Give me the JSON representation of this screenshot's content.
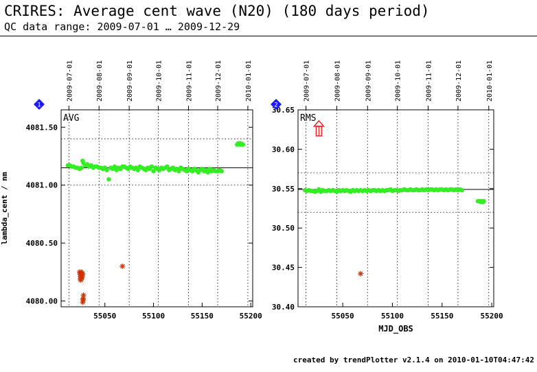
{
  "header": {
    "title": "CRIRES: Average cent wave (N20) (180 days period)",
    "subtitle": "QC data range: 2009-07-01 … 2009-12-29"
  },
  "footer": {
    "text": "created by trendPlotter v2.1.4 on 2010-01-10T04:47:42"
  },
  "colors": {
    "points": "#33ee22",
    "outliers": "#cc3300",
    "outlier_arrow": "#ff2020",
    "panel_marker": "#1a1aff",
    "reference": "#000000"
  },
  "chart_data": [
    {
      "type": "scatter",
      "panel_number": "1",
      "label": "AVG",
      "ylabel": "lambda_cent / nm",
      "xlabel": "",
      "xlim": [
        55005,
        55202
      ],
      "ylim": [
        4079.95,
        4081.65
      ],
      "yticks": [
        "4080.00",
        "4080.50",
        "4081.00",
        "4081.50"
      ],
      "ytick_values": [
        4080.0,
        4080.5,
        4081.0,
        4081.5
      ],
      "xticks": [
        "55050",
        "55100",
        "55150",
        "55200"
      ],
      "xtick_values": [
        55050,
        55100,
        55150,
        55200
      ],
      "top_dates": [
        "2009-07-01",
        "2009-08-01",
        "2009-09-01",
        "2009-10-01",
        "2009-11-01",
        "2009-12-01",
        "2010-01-01"
      ],
      "top_date_mjd": [
        55013,
        55044,
        55075,
        55105,
        55136,
        55166,
        55197
      ],
      "reference_line": 4081.15,
      "limit_lines": [
        4081.4,
        4081.0
      ],
      "series": [
        {
          "x": [
            55012,
            55014,
            55016,
            55018,
            55020,
            55022,
            55024,
            55026,
            55027,
            55028,
            55030,
            55032,
            55034,
            55036,
            55038,
            55040,
            55042,
            55044,
            55046,
            55048,
            55050,
            55052,
            55054,
            55056,
            55058,
            55060,
            55062,
            55064,
            55066,
            55068,
            55070,
            55072,
            55074,
            55076,
            55078,
            55080,
            55082,
            55084,
            55086,
            55088,
            55090,
            55092,
            55094,
            55096,
            55098,
            55100,
            55102,
            55104,
            55106,
            55108,
            55110,
            55112,
            55114,
            55116,
            55118,
            55120,
            55122,
            55124,
            55126,
            55128,
            55130,
            55132,
            55134,
            55136,
            55138,
            55140,
            55142,
            55144,
            55146,
            55148,
            55150,
            55152,
            55154,
            55156,
            55158,
            55160,
            55162,
            55164,
            55166,
            55168,
            55170,
            55186,
            55187,
            55188,
            55189,
            55190,
            55191,
            55192
          ],
          "y": [
            4081.17,
            4081.17,
            4081.16,
            4081.16,
            4081.15,
            4081.15,
            4081.14,
            4081.15,
            4081.21,
            4081.19,
            4081.17,
            4081.18,
            4081.16,
            4081.17,
            4081.15,
            4081.16,
            4081.16,
            4081.15,
            4081.15,
            4081.14,
            4081.15,
            4081.13,
            4081.05,
            4081.15,
            4081.14,
            4081.16,
            4081.13,
            4081.15,
            4081.14,
            4081.16,
            4081.16,
            4081.15,
            4081.14,
            4081.16,
            4081.15,
            4081.14,
            4081.15,
            4081.13,
            4081.16,
            4081.15,
            4081.14,
            4081.13,
            4081.15,
            4081.14,
            4081.16,
            4081.12,
            4081.15,
            4081.14,
            4081.13,
            4081.15,
            4081.14,
            4081.15,
            4081.16,
            4081.13,
            4081.14,
            4081.15,
            4081.13,
            4081.14,
            4081.12,
            4081.15,
            4081.14,
            4081.13,
            4081.12,
            4081.14,
            4081.13,
            4081.12,
            4081.14,
            4081.13,
            4081.11,
            4081.13,
            4081.14,
            4081.12,
            4081.13,
            4081.11,
            4081.14,
            4081.12,
            4081.13,
            4081.12,
            4081.12,
            4081.13,
            4081.12,
            4081.35,
            4081.36,
            4081.36,
            4081.35,
            4081.36,
            4081.35,
            4081.35
          ]
        },
        {
          "x": [
            55024,
            55024.5,
            55025,
            55025.5,
            55026,
            55026.5,
            55027,
            55024.8,
            55025.6,
            55026.2,
            55025.3,
            55026.8,
            55027.5,
            55028,
            55027.2,
            55027.8,
            55068
          ],
          "y": [
            4080.25,
            4080.23,
            4080.21,
            4080.24,
            4080.22,
            4080.2,
            4080.23,
            4080.19,
            4080.25,
            4080.21,
            4080.18,
            4080.24,
            4080.02,
            4080.05,
            4079.99,
            4080.01,
            4080.3
          ]
        }
      ]
    },
    {
      "type": "scatter",
      "panel_number": "2",
      "label": "RMS",
      "ylabel": "",
      "xlabel": "MJD_OBS",
      "xlim": [
        55005,
        55202
      ],
      "ylim": [
        30.4,
        30.65
      ],
      "yticks": [
        "30.40",
        "30.45",
        "30.50",
        "30.55",
        "30.60",
        "30.65"
      ],
      "ytick_values": [
        30.4,
        30.45,
        30.5,
        30.55,
        30.6,
        30.65
      ],
      "xticks": [
        "55050",
        "55100",
        "55150",
        "55200"
      ],
      "xtick_values": [
        55050,
        55100,
        55150,
        55200
      ],
      "top_dates": [
        "2009-07-01",
        "2009-08-01",
        "2009-09-01",
        "2009-10-01",
        "2009-11-01",
        "2009-12-01",
        "2010-01-01"
      ],
      "top_date_mjd": [
        55013,
        55044,
        55075,
        55105,
        55136,
        55166,
        55197
      ],
      "reference_line": 30.549,
      "limit_lines": [
        30.57,
        30.52
      ],
      "series": [
        {
          "x": [
            55012,
            55014,
            55016,
            55018,
            55020,
            55022,
            55024,
            55026,
            55028,
            55030,
            55032,
            55034,
            55036,
            55038,
            55040,
            55042,
            55044,
            55046,
            55048,
            55050,
            55052,
            55054,
            55056,
            55058,
            55060,
            55062,
            55064,
            55066,
            55068,
            55070,
            55072,
            55074,
            55076,
            55078,
            55080,
            55082,
            55084,
            55086,
            55088,
            55090,
            55092,
            55094,
            55096,
            55098,
            55100,
            55102,
            55104,
            55106,
            55108,
            55110,
            55112,
            55114,
            55116,
            55118,
            55120,
            55122,
            55124,
            55126,
            55128,
            55130,
            55132,
            55134,
            55136,
            55138,
            55140,
            55142,
            55144,
            55146,
            55148,
            55150,
            55152,
            55154,
            55156,
            55158,
            55160,
            55162,
            55164,
            55166,
            55168,
            55170,
            55186,
            55187,
            55188,
            55189,
            55190,
            55191,
            55192
          ],
          "y": [
            30.548,
            30.547,
            30.548,
            30.547,
            30.547,
            30.546,
            30.547,
            30.549,
            30.546,
            30.548,
            30.547,
            30.547,
            30.548,
            30.547,
            30.548,
            30.547,
            30.546,
            30.548,
            30.547,
            30.548,
            30.547,
            30.548,
            30.547,
            30.546,
            30.548,
            30.547,
            30.548,
            30.547,
            30.548,
            30.547,
            30.548,
            30.547,
            30.548,
            30.547,
            30.548,
            30.548,
            30.547,
            30.548,
            30.547,
            30.548,
            30.547,
            30.548,
            30.548,
            30.549,
            30.547,
            30.548,
            30.548,
            30.547,
            30.548,
            30.548,
            30.549,
            30.548,
            30.548,
            30.549,
            30.548,
            30.548,
            30.549,
            30.548,
            30.548,
            30.549,
            30.548,
            30.549,
            30.548,
            30.549,
            30.549,
            30.548,
            30.549,
            30.548,
            30.549,
            30.549,
            30.548,
            30.549,
            30.548,
            30.549,
            30.549,
            30.548,
            30.549,
            30.548,
            30.549,
            30.548,
            30.534,
            30.534,
            30.534,
            30.533,
            30.534,
            30.533,
            30.534
          ]
        },
        {
          "x": [
            55068
          ],
          "y": [
            30.442
          ]
        }
      ],
      "offscale_markers": [
        {
          "x": 55026,
          "direction": "up"
        }
      ]
    }
  ]
}
